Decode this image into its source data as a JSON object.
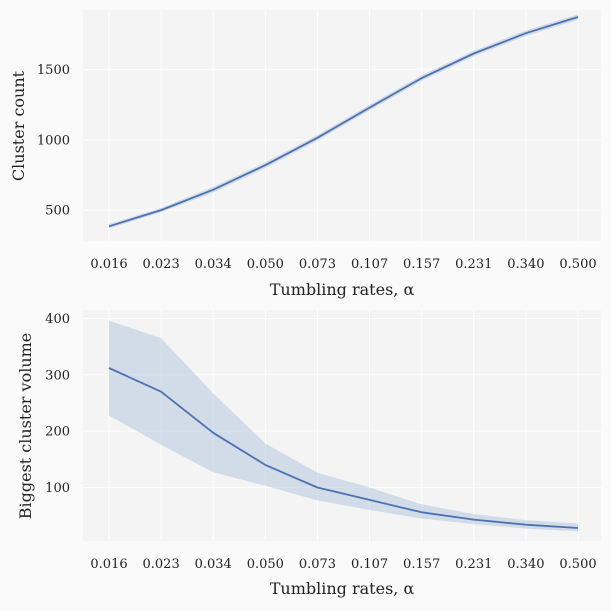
{
  "colors": {
    "line": "#4c72b0",
    "band": "#b7c6df",
    "panel_bg": "#f4f4f4",
    "grid": "#ffffff",
    "text": "#222222"
  },
  "chart_data": [
    {
      "type": "line",
      "categories": [
        "0.016",
        "0.023",
        "0.034",
        "0.050",
        "0.073",
        "0.107",
        "0.157",
        "0.231",
        "0.340",
        "0.500"
      ],
      "xlabel": "Tumbling rates, α",
      "ylabel": "Cluster count",
      "ylim": [
        280,
        1925
      ],
      "yticks": [
        "500",
        "1000",
        "1500"
      ],
      "grid": true,
      "series": [
        {
          "values": [
            385,
            500,
            645,
            820,
            1015,
            1230,
            1440,
            1615,
            1760,
            1875
          ],
          "lower": [
            370,
            485,
            625,
            800,
            995,
            1210,
            1420,
            1595,
            1740,
            1855
          ],
          "upper": [
            400,
            515,
            665,
            840,
            1035,
            1250,
            1460,
            1635,
            1780,
            1895
          ]
        }
      ]
    },
    {
      "type": "line",
      "categories": [
        "0.016",
        "0.023",
        "0.034",
        "0.050",
        "0.073",
        "0.107",
        "0.157",
        "0.231",
        "0.340",
        "0.500"
      ],
      "xlabel": "Tumbling rates, α",
      "ylabel": "Biggest cluster volume",
      "ylim": [
        5,
        415
      ],
      "yticks": [
        "100",
        "200",
        "300",
        "400"
      ],
      "grid": true,
      "series": [
        {
          "values": [
            312,
            270,
            197,
            140,
            100,
            78,
            56,
            43,
            34,
            28
          ],
          "lower": [
            228,
            176,
            127,
            103,
            77,
            60,
            45,
            35,
            27,
            22
          ],
          "upper": [
            396,
            365,
            267,
            178,
            126,
            100,
            70,
            53,
            42,
            36
          ]
        }
      ]
    }
  ]
}
